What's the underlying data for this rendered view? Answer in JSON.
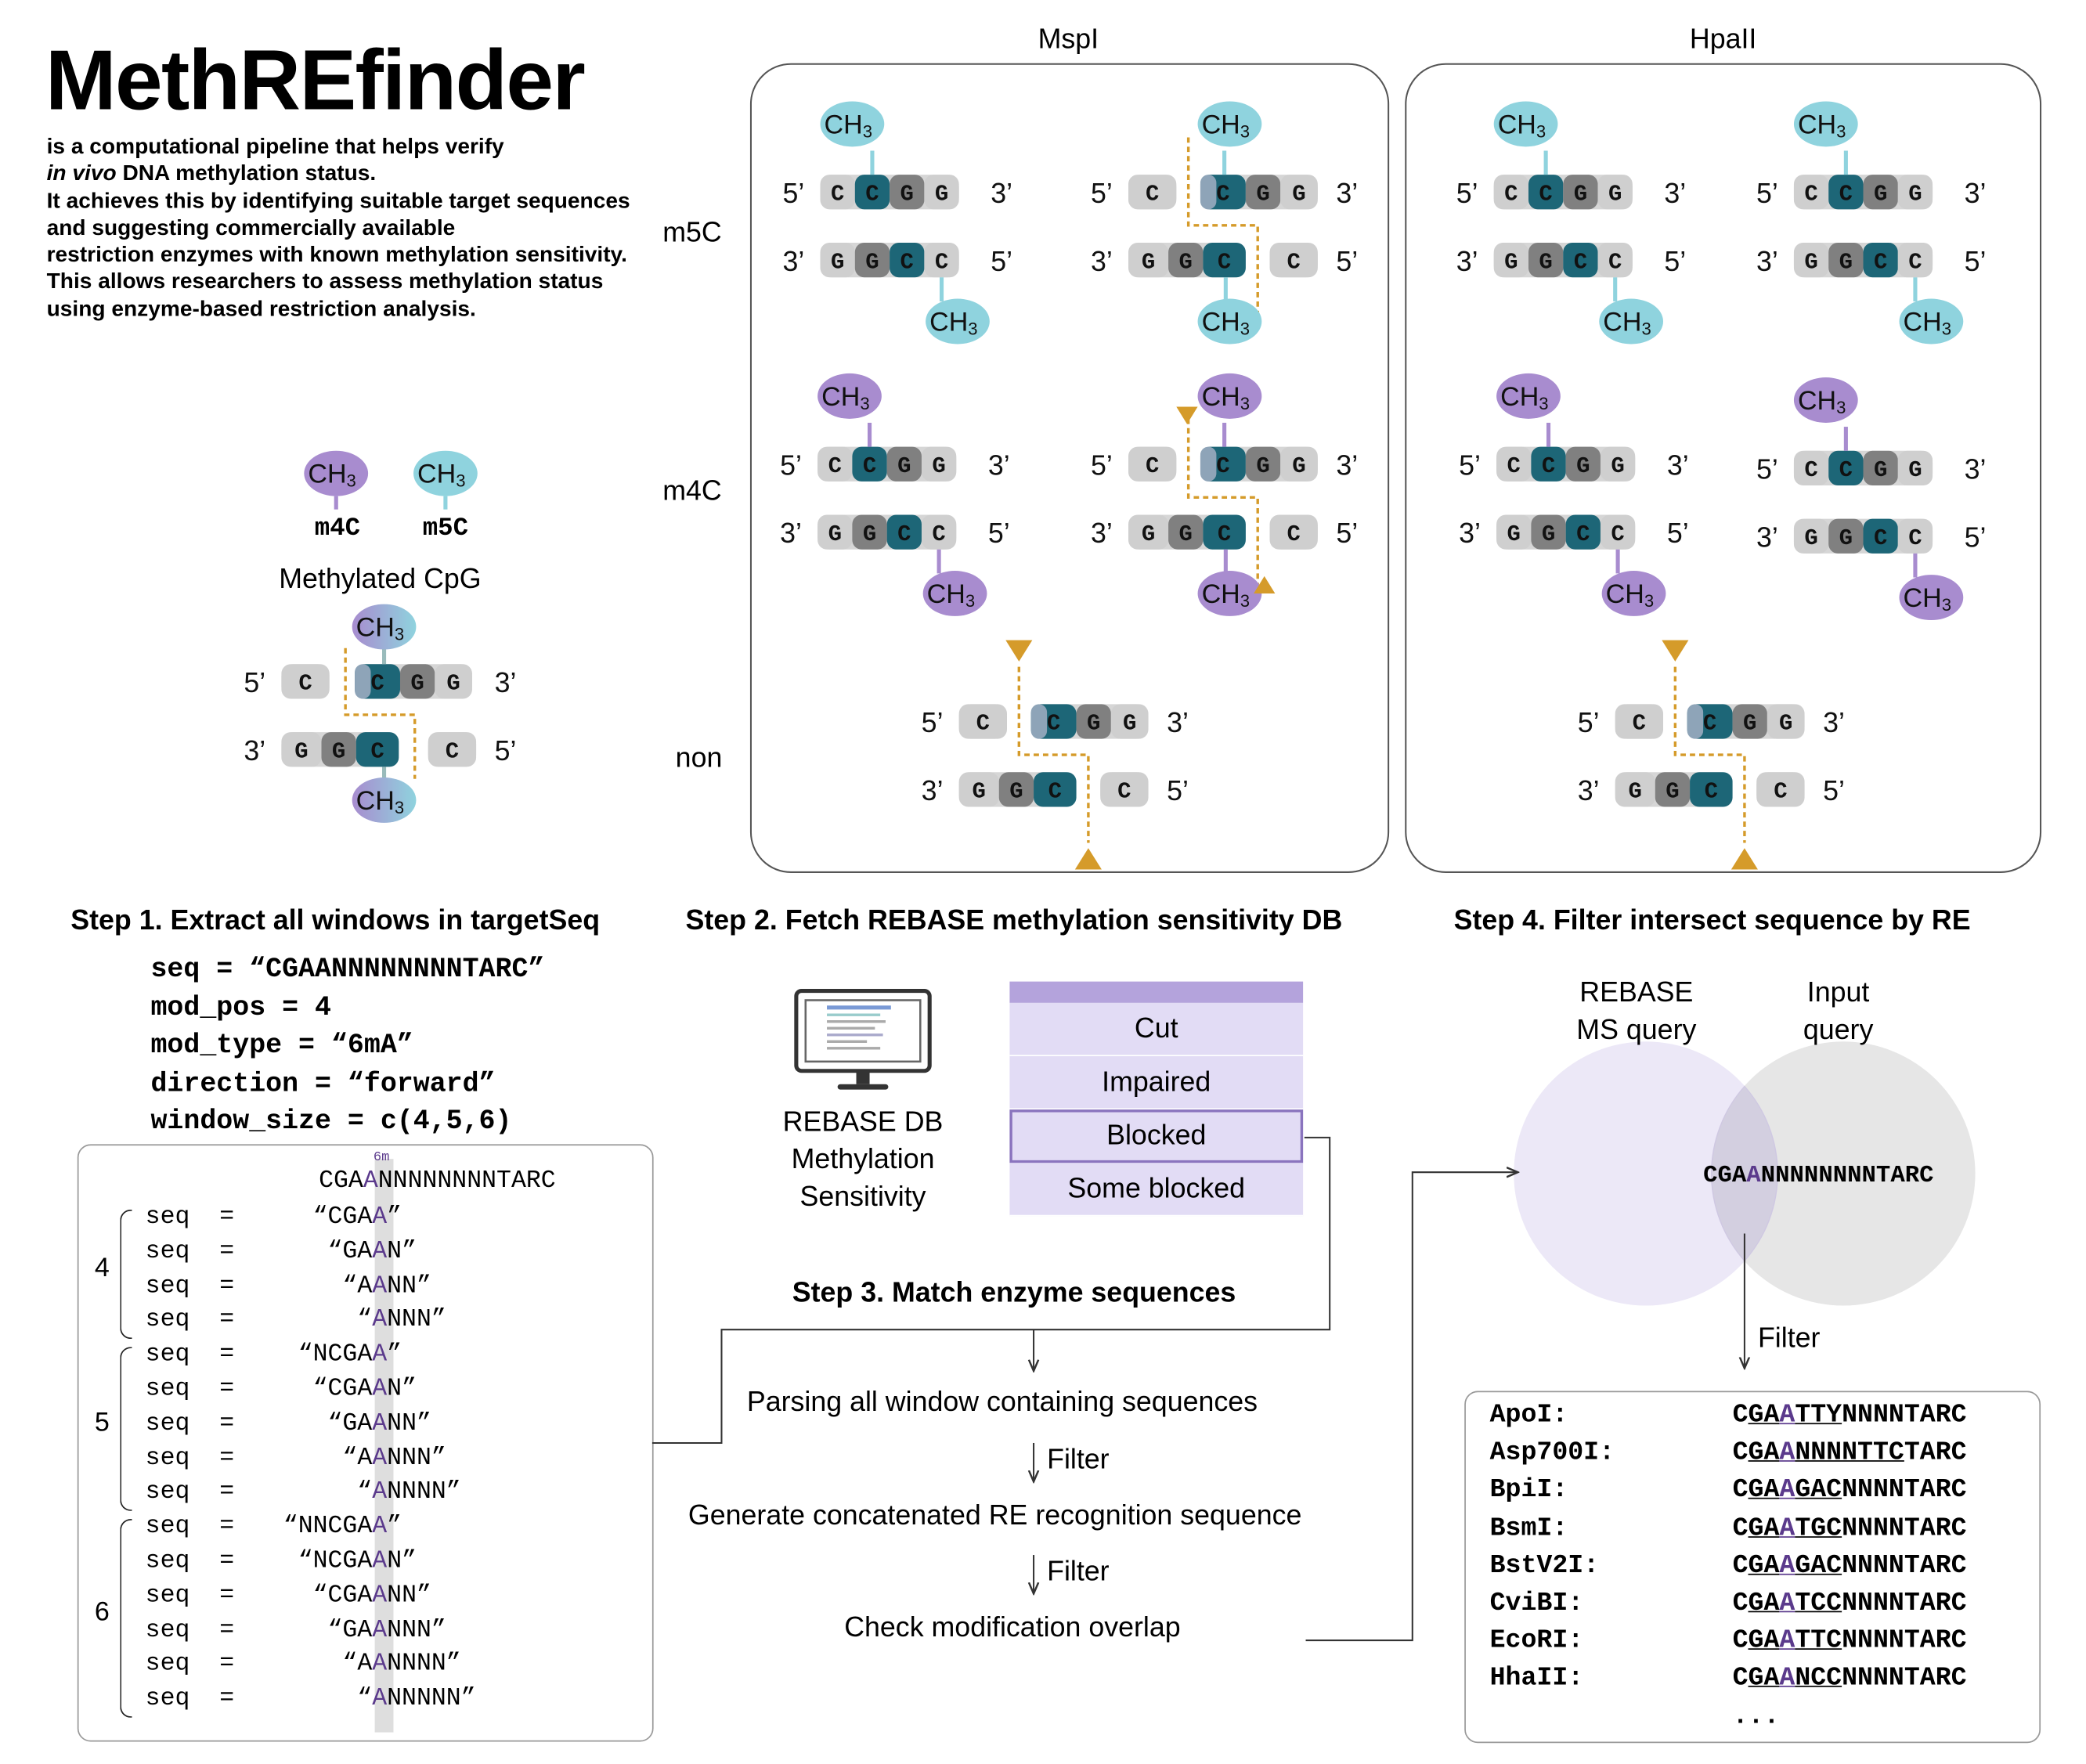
{
  "header": {
    "title": "MethREfinder",
    "intro_1": "is a computational pipeline that helps verify",
    "intro_2a": "in vivo",
    "intro_2b": " DNA methylation status.",
    "intro_3": "It achieves this by identifying suitable target sequences",
    "intro_4": "and suggesting commercially available",
    "intro_5": "restriction enzymes with known methylation sensitivity.",
    "intro_6": "This allows researchers to assess methylation status",
    "intro_7": "using enzyme-based restriction analysis."
  },
  "legend": {
    "m4c_label": "m4C",
    "m5c_label": "m5C",
    "caption": "Methylated CpG"
  },
  "labels": {
    "ch3": "CH3",
    "five_prime": "5’",
    "three_prime": "3’"
  },
  "enzymes": {
    "mspi": "MspI",
    "hpaii": "HpaII"
  },
  "rows": {
    "m5c": "m5C",
    "m4c": "m4C",
    "non": "non"
  },
  "colors": {
    "m5c": "#8fd3de",
    "m4c": "#a88ccf",
    "dark_base": "#1d6677",
    "mid_base": "#808080",
    "light_base": "#cfcfcf",
    "cut_marker": "#d59b2a",
    "ms_table": "#e2dcf5",
    "ms_header": "#b4a3dc",
    "venn_left": "#ece8f7",
    "venn_right": "#e6e6e6"
  },
  "step1": {
    "title": "Step 1. Extract all windows in targetSeq",
    "params": [
      "seq = “CGAANNNNNNNNTARC”",
      "mod_pos = 4",
      "mod_type = “6mA”",
      "direction = “forward”",
      "window_size = c(4,5,6)"
    ],
    "seq_head": "CGAANNNNNNNNTARC",
    "mod_mark": "6m",
    "seq_kw": "seq",
    "eq": "=",
    "groups": [
      {
        "size": "4",
        "windows": [
          "“CGAA”",
          "“GAAN”",
          "“AANN”",
          "“ANNN”"
        ]
      },
      {
        "size": "5",
        "windows": [
          "“NCGAA”",
          "“CGAAN”",
          "“GAANN”",
          "“AANNN”",
          "“ANNNN”"
        ]
      },
      {
        "size": "6",
        "windows": [
          "“NNCGAA”",
          "“NCGAAN”",
          "“CGAANN”",
          "“GAANNN”",
          "“AANNNN”",
          "“ANNNNN”"
        ]
      }
    ]
  },
  "step2": {
    "title": "Step 2. Fetch REBASE methylation sensitivity DB",
    "db_label_1": "REBASE DB",
    "db_label_2": "Methylation",
    "db_label_3": "Sensitivity",
    "table": [
      "Cut",
      "Impaired",
      "Blocked",
      "Some blocked"
    ]
  },
  "step3": {
    "title": "Step 3. Match enzyme sequences",
    "steps": [
      "Parsing all window containing sequences",
      "Generate concatenated RE recognition sequence",
      "Check modification overlap"
    ],
    "filter": "Filter"
  },
  "step4": {
    "title": "Step 4. Filter intersect sequence by RE",
    "venn_left_1": "REBASE",
    "venn_left_2": "MS query",
    "venn_right_1": "Input",
    "venn_right_2": "query",
    "intersect_seq": "CGAANNNNNNNNTARC",
    "filter": "Filter",
    "results": [
      {
        "enzyme": "ApoI:",
        "seq": "CGAATTYNNNNTARC"
      },
      {
        "enzyme": "Asp700I:",
        "seq": "CGAANNNNTTCTARC"
      },
      {
        "enzyme": "BpiI:",
        "seq": "CGAAGACNNNNTARC"
      },
      {
        "enzyme": "BsmI:",
        "seq": "CGAATGCNNNNTARC"
      },
      {
        "enzyme": "BstV2I:",
        "seq": "CGAAGACNNNNTARC"
      },
      {
        "enzyme": "CviBI:",
        "seq": "CGAATCCNNNNTARC"
      },
      {
        "enzyme": "EcoRI:",
        "seq": "CGAATTCNNNNTARC"
      },
      {
        "enzyme": "HhaII:",
        "seq": "CGAANCCNNNNTARC"
      }
    ],
    "more": "..."
  }
}
